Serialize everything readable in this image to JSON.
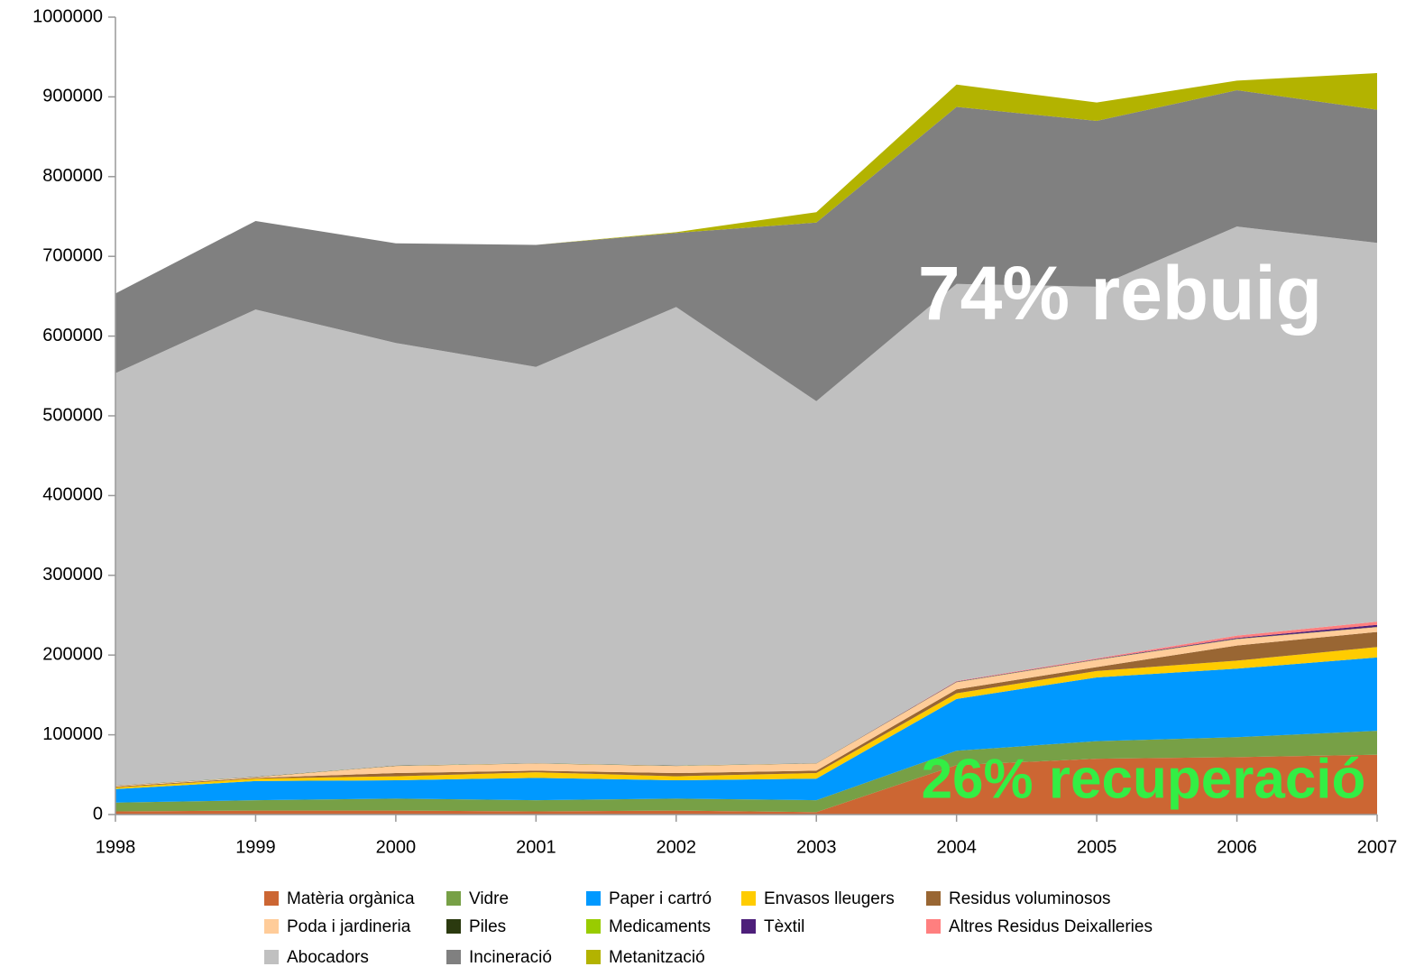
{
  "chart_data": {
    "type": "stacked_area",
    "categories": [
      "1998",
      "1999",
      "2000",
      "2001",
      "2002",
      "2003",
      "2004",
      "2005",
      "2006",
      "2007"
    ],
    "series": [
      {
        "name": "Matèria orgànica",
        "color": "#cc6633",
        "values": [
          4000,
          5000,
          5000,
          4000,
          5000,
          3000,
          62000,
          70000,
          72000,
          75000
        ]
      },
      {
        "name": "Vidre",
        "color": "#77a046",
        "values": [
          11000,
          13000,
          15000,
          14000,
          15000,
          15000,
          18000,
          22000,
          25000,
          30000
        ]
      },
      {
        "name": "Paper i cartró",
        "color": "#0099ff",
        "values": [
          17000,
          24000,
          23000,
          28000,
          23000,
          27000,
          65000,
          80000,
          86000,
          92000
        ]
      },
      {
        "name": "Envasos lleugers",
        "color": "#ffcc00",
        "values": [
          2000,
          3000,
          5000,
          7000,
          5000,
          7000,
          7000,
          8000,
          10000,
          13000
        ]
      },
      {
        "name": "Residus voluminosos",
        "color": "#996633",
        "values": [
          1000,
          1000,
          4000,
          2000,
          4000,
          3000,
          5000,
          5000,
          19000,
          19000
        ]
      },
      {
        "name": "Poda i jardineria",
        "color": "#ffcc99",
        "values": [
          1000,
          1000,
          9000,
          9000,
          9000,
          9000,
          9000,
          9000,
          8000,
          6000
        ]
      },
      {
        "name": "Piles",
        "color": "#2b3a0f",
        "values": [
          300,
          300,
          300,
          300,
          300,
          300,
          300,
          300,
          300,
          300
        ]
      },
      {
        "name": "Medicaments",
        "color": "#99cc00",
        "values": [
          100,
          100,
          100,
          100,
          100,
          100,
          100,
          100,
          100,
          100
        ]
      },
      {
        "name": "Tèxtil",
        "color": "#4d1f7a",
        "values": [
          0,
          0,
          0,
          0,
          0,
          0,
          500,
          500,
          1000,
          2500
        ]
      },
      {
        "name": "Altres Residus Deixalleries",
        "color": "#ff7f7f",
        "values": [
          0,
          0,
          0,
          0,
          0,
          0,
          500,
          1000,
          3000,
          4000
        ]
      },
      {
        "name": "Abocadors",
        "color": "#c0c0c0",
        "values": [
          517000,
          586000,
          530000,
          497000,
          575000,
          454000,
          498000,
          466000,
          513000,
          475000
        ]
      },
      {
        "name": "Incineració",
        "color": "#808080",
        "values": [
          100000,
          111000,
          125000,
          153000,
          93000,
          224000,
          222000,
          208000,
          171000,
          167000
        ]
      },
      {
        "name": "Metanització",
        "color": "#b3b300",
        "values": [
          0,
          0,
          0,
          0,
          1000,
          13000,
          28000,
          23000,
          12000,
          46000
        ]
      }
    ],
    "ylim": [
      0,
      1000000
    ],
    "yticks": [
      0,
      100000,
      200000,
      300000,
      400000,
      500000,
      600000,
      700000,
      800000,
      900000,
      1000000
    ],
    "annotations": [
      "74% rebuig",
      "26% recuperació"
    ]
  }
}
